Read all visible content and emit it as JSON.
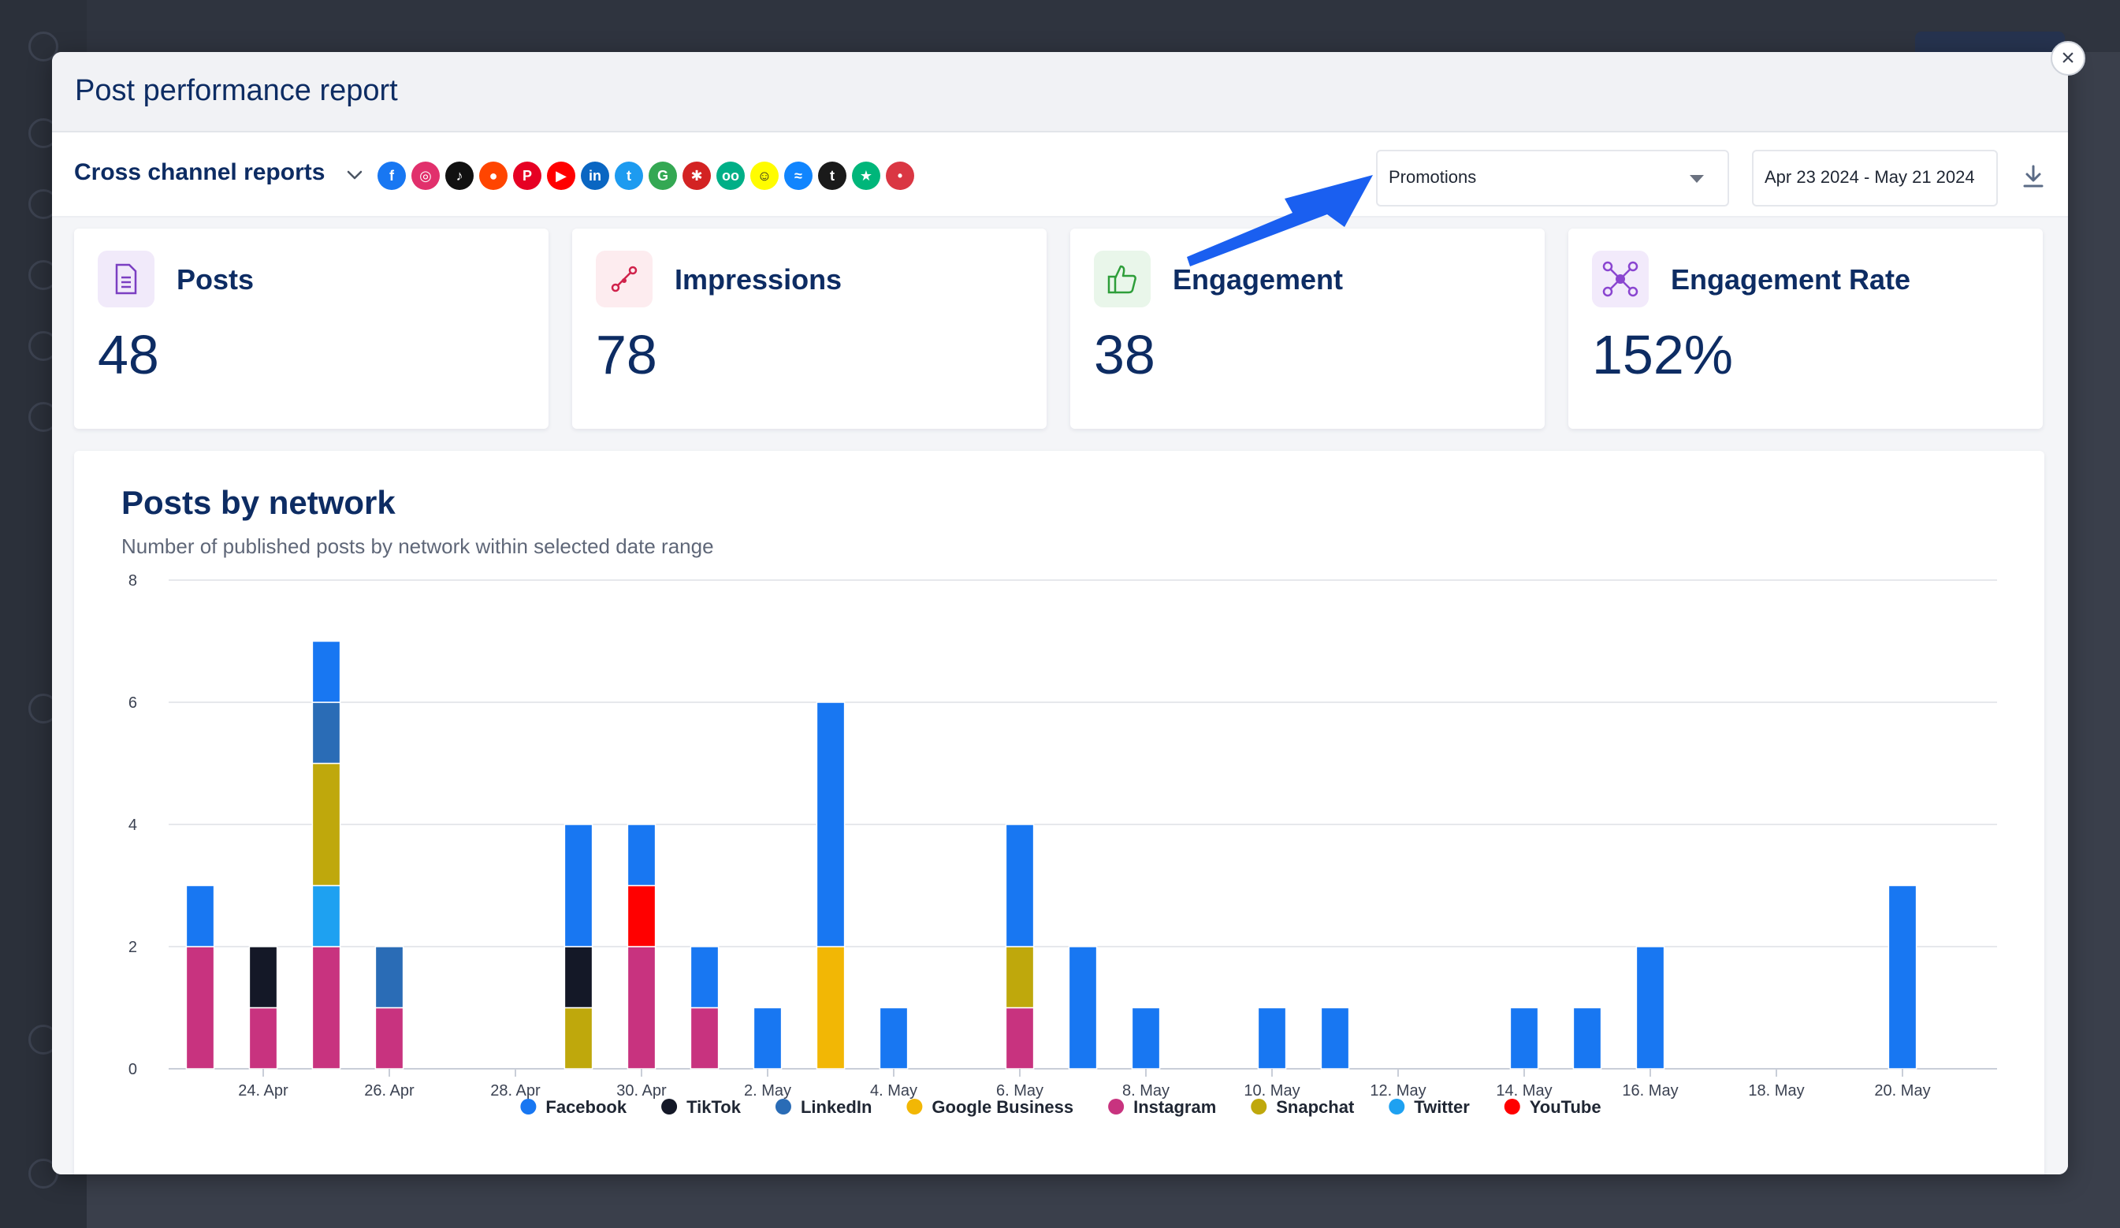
{
  "modal": {
    "title": "Post performance report",
    "close_symbol": "×"
  },
  "toolbar": {
    "title": "Cross channel reports",
    "networks": [
      {
        "name": "facebook-icon",
        "glyph": "f",
        "color": "#1877f2"
      },
      {
        "name": "instagram-icon",
        "glyph": "◎",
        "color": "#e1306c"
      },
      {
        "name": "tiktok-icon",
        "glyph": "♪",
        "color": "#111111"
      },
      {
        "name": "reddit-icon",
        "glyph": "●",
        "color": "#ff4500"
      },
      {
        "name": "pinterest-icon",
        "glyph": "P",
        "color": "#e60023"
      },
      {
        "name": "youtube-icon",
        "glyph": "▶",
        "color": "#ff0000"
      },
      {
        "name": "linkedin-icon",
        "glyph": "in",
        "color": "#0a66c2"
      },
      {
        "name": "twitter-icon",
        "glyph": "t",
        "color": "#1d9bf0"
      },
      {
        "name": "google-icon",
        "glyph": "G",
        "color": "#34a853"
      },
      {
        "name": "yelp-icon",
        "glyph": "✱",
        "color": "#d32323"
      },
      {
        "name": "tripadvisor-icon",
        "glyph": "oo",
        "color": "#00af87"
      },
      {
        "name": "snapchat-icon",
        "glyph": "☺",
        "color": "#fffc00"
      },
      {
        "name": "bluesky-icon",
        "glyph": "≈",
        "color": "#1185fe"
      },
      {
        "name": "tumblr-icon",
        "glyph": "t",
        "color": "#1a1a1a"
      },
      {
        "name": "trustpilot-icon",
        "glyph": "★",
        "color": "#00b67a"
      },
      {
        "name": "opentable-icon",
        "glyph": "•",
        "color": "#da3743"
      }
    ],
    "filter_value": "Promotions",
    "date_range": "Apr 23 2024  -  May 21 2024"
  },
  "metrics": [
    {
      "label": "Posts",
      "value": "48",
      "icon": "document-icon",
      "accent": "#7b3fc2",
      "bg": "#f1eafa"
    },
    {
      "label": "Impressions",
      "value": "78",
      "icon": "share-nodes-icon",
      "accent": "#d0224b",
      "bg": "#fdecef"
    },
    {
      "label": "Engagement",
      "value": "38",
      "icon": "thumbs-up-icon",
      "accent": "#2e9e3a",
      "bg": "#e9f6ea"
    },
    {
      "label": "Engagement Rate",
      "value": "152%",
      "icon": "network-icon",
      "accent": "#8a45d0",
      "bg": "#f2eafb"
    }
  ],
  "chart": {
    "title": "Posts by network",
    "subtitle": "Number of published posts by network within selected date range"
  },
  "chart_data": {
    "type": "bar",
    "stacked": true,
    "ylim": [
      0,
      8
    ],
    "yticks": [
      0,
      2,
      4,
      6,
      8
    ],
    "x": [
      "23. Apr",
      "24. Apr",
      "25. Apr",
      "26. Apr",
      "27. Apr",
      "28. Apr",
      "29. Apr",
      "30. Apr",
      "1. May",
      "2. May",
      "3. May",
      "4. May",
      "5. May",
      "6. May",
      "7. May",
      "8. May",
      "9. May",
      "10. May",
      "11. May",
      "12. May",
      "13. May",
      "14. May",
      "15. May",
      "16. May",
      "17. May",
      "18. May",
      "19. May",
      "20. May",
      "21. May"
    ],
    "xtick_labels": [
      "24. Apr",
      "26. Apr",
      "28. Apr",
      "30. Apr",
      "2. May",
      "4. May",
      "6. May",
      "8. May",
      "10. May",
      "12. May",
      "14. May",
      "16. May",
      "18. May",
      "20. May"
    ],
    "grid": true,
    "legend": "bottom",
    "series": [
      {
        "name": "Instagram",
        "color": "#c8337f",
        "values": [
          2,
          1,
          2,
          1,
          0,
          0,
          0,
          2,
          1,
          0,
          0,
          0,
          0,
          1,
          0,
          0,
          0,
          0,
          0,
          0,
          0,
          0,
          0,
          0,
          0,
          0,
          0,
          0,
          0
        ]
      },
      {
        "name": "YouTube",
        "color": "#ff0000",
        "values": [
          0,
          0,
          0,
          0,
          0,
          0,
          0,
          1,
          0,
          0,
          0,
          0,
          0,
          0,
          0,
          0,
          0,
          0,
          0,
          0,
          0,
          0,
          0,
          0,
          0,
          0,
          0,
          0,
          0
        ]
      },
      {
        "name": "Twitter",
        "color": "#1ea1f1",
        "values": [
          0,
          0,
          1,
          0,
          0,
          0,
          0,
          0,
          0,
          0,
          0,
          0,
          0,
          0,
          0,
          0,
          0,
          0,
          0,
          0,
          0,
          0,
          0,
          0,
          0,
          0,
          0,
          0,
          0
        ]
      },
      {
        "name": "Snapchat",
        "color": "#bfa80c",
        "values": [
          0,
          0,
          2,
          0,
          0,
          0,
          1,
          0,
          0,
          0,
          0,
          0,
          0,
          1,
          0,
          0,
          0,
          0,
          0,
          0,
          0,
          0,
          0,
          0,
          0,
          0,
          0,
          0,
          0
        ]
      },
      {
        "name": "Google Business",
        "color": "#f2b705",
        "values": [
          0,
          0,
          0,
          0,
          0,
          0,
          0,
          0,
          0,
          0,
          2,
          0,
          0,
          0,
          0,
          0,
          0,
          0,
          0,
          0,
          0,
          0,
          0,
          0,
          0,
          0,
          0,
          0,
          0
        ]
      },
      {
        "name": "TikTok",
        "color": "#141827",
        "values": [
          0,
          1,
          0,
          0,
          0,
          0,
          1,
          0,
          0,
          0,
          0,
          0,
          0,
          0,
          0,
          0,
          0,
          0,
          0,
          0,
          0,
          0,
          0,
          0,
          0,
          0,
          0,
          0,
          0
        ]
      },
      {
        "name": "LinkedIn",
        "color": "#2a6cb6",
        "values": [
          0,
          0,
          1,
          1,
          0,
          0,
          0,
          0,
          0,
          0,
          0,
          0,
          0,
          0,
          0,
          0,
          0,
          0,
          0,
          0,
          0,
          0,
          0,
          0,
          0,
          0,
          0,
          0,
          0
        ]
      },
      {
        "name": "Facebook",
        "color": "#1877f2",
        "values": [
          1,
          0,
          1,
          0,
          0,
          0,
          2,
          1,
          1,
          1,
          4,
          1,
          0,
          2,
          2,
          1,
          0,
          1,
          1,
          0,
          0,
          1,
          1,
          2,
          0,
          0,
          0,
          3,
          0
        ]
      }
    ],
    "legend_order": [
      "Facebook",
      "TikTok",
      "LinkedIn",
      "Google Business",
      "Instagram",
      "Snapchat",
      "Twitter",
      "YouTube"
    ]
  }
}
